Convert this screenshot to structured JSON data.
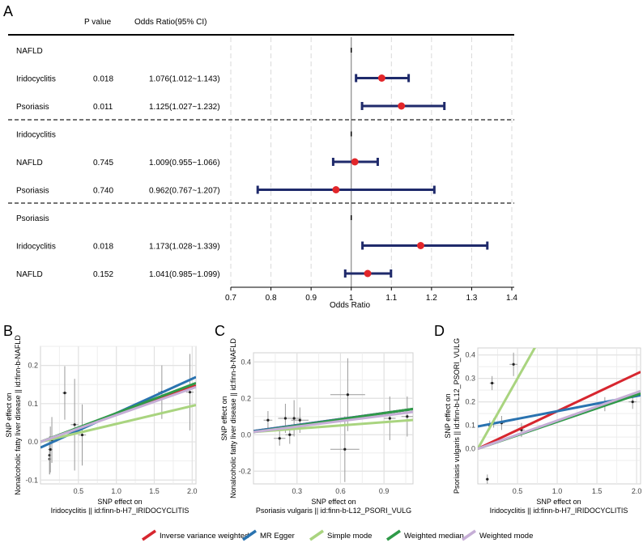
{
  "colors": {
    "ivw": "#d7262f",
    "egger": "#2a73b0",
    "simple": "#a9d47f",
    "wmedian": "#2f9a48",
    "wmode": "#c6aed6",
    "forest_line": "#1f2a6b",
    "forest_point": "#e2262a",
    "grid": "#d9d9d9"
  },
  "panels": {
    "A": {
      "label": "A"
    },
    "B": {
      "label": "B"
    },
    "C": {
      "label": "C"
    },
    "D": {
      "label": "D"
    }
  },
  "forest": {
    "header_p": "P value",
    "header_or": "Odds Ratio(95% CI)",
    "xlabel": "Odds Ratio",
    "xlim": [
      0.7,
      1.4
    ],
    "ticks": [
      "0.7",
      "0.8",
      "0.9",
      "1",
      "1.1",
      "1.2",
      "1.3",
      "1.4"
    ],
    "tick_values": [
      0.7,
      0.8,
      0.9,
      1.0,
      1.1,
      1.2,
      1.3,
      1.4
    ],
    "rows": [
      {
        "label": "NAFLD",
        "group": true,
        "p": "",
        "or_text": ""
      },
      {
        "label": "Iridocyclitis",
        "group": false,
        "p": "0.018",
        "or_text": "1.076(1.012~1.143)",
        "or": 1.076,
        "lo": 1.012,
        "hi": 1.143
      },
      {
        "label": "Psoriasis",
        "group": false,
        "p": "0.011",
        "or_text": "1.125(1.027~1.232)",
        "or": 1.125,
        "lo": 1.027,
        "hi": 1.232
      },
      {
        "label": "Iridocyclitis",
        "group": true,
        "p": "",
        "or_text": ""
      },
      {
        "label": "NAFLD",
        "group": false,
        "p": "0.745",
        "or_text": "1.009(0.955~1.066)",
        "or": 1.009,
        "lo": 0.955,
        "hi": 1.066
      },
      {
        "label": "Psoriasis",
        "group": false,
        "p": "0.740",
        "or_text": "0.962(0.767~1.207)",
        "or": 0.962,
        "lo": 0.767,
        "hi": 1.207
      },
      {
        "label": "Psoriasis",
        "group": true,
        "p": "",
        "or_text": ""
      },
      {
        "label": "Iridocyclitis",
        "group": false,
        "p": "0.018",
        "or_text": "1.173(1.028~1.339)",
        "or": 1.173,
        "lo": 1.028,
        "hi": 1.339
      },
      {
        "label": "NAFLD",
        "group": false,
        "p": "0.152",
        "or_text": "1.041(0.985~1.099)",
        "or": 1.041,
        "lo": 0.985,
        "hi": 1.099
      }
    ]
  },
  "chart_data": [
    {
      "type": "scatter",
      "panel": "B",
      "xlabel_line1": "SNP effect on",
      "xlabel_line2": "Iridocyclitis || id:finn-b-H7_IRIDOCYCLITIS",
      "ylabel_line1": "SNP effect on",
      "ylabel_line2": "Nonalcoholic fatty liver disease || id:finn-b-NAFLD",
      "xlim": [
        0,
        2.05
      ],
      "ylim": [
        -0.11,
        0.25
      ],
      "xticks": [
        0.5,
        1.0,
        1.5,
        2.0
      ],
      "xtick_labels": [
        "0.5",
        "1.0",
        "1.5",
        "2.0"
      ],
      "yticks": [
        -0.1,
        0.0,
        0.1,
        0.2
      ],
      "ytick_labels": [
        "-0.1",
        "0.0",
        "0.1",
        "0.2"
      ],
      "points": [
        {
          "x": 0.12,
          "y": -0.045,
          "xe": 0.02,
          "ye": 0.04
        },
        {
          "x": 0.12,
          "y": -0.035,
          "xe": 0.02,
          "ye": 0.05
        },
        {
          "x": 0.13,
          "y": -0.02,
          "xe": 0.03,
          "ye": 0.06
        },
        {
          "x": 0.15,
          "y": 0.005,
          "xe": 0.03,
          "ye": 0.06
        },
        {
          "x": 0.32,
          "y": 0.128,
          "xe": 0.03,
          "ye": 0.07
        },
        {
          "x": 0.45,
          "y": 0.045,
          "xe": 0.05,
          "ye": 0.12
        },
        {
          "x": 0.55,
          "y": 0.018,
          "xe": 0.05,
          "ye": 0.08
        },
        {
          "x": 1.6,
          "y": 0.13,
          "xe": 0.05,
          "ye": 0.07
        },
        {
          "x": 1.97,
          "y": 0.13,
          "xe": 0.05,
          "ye": 0.1
        }
      ],
      "lines": [
        {
          "method": "ivw",
          "slope": 0.072,
          "intercept": 0.0
        },
        {
          "method": "egger",
          "slope": 0.09,
          "intercept": -0.015
        },
        {
          "method": "simple",
          "slope": 0.047,
          "intercept": 0.0
        },
        {
          "method": "wmedian",
          "slope": 0.075,
          "intercept": 0.0
        },
        {
          "method": "wmode",
          "slope": 0.07,
          "intercept": 0.0
        }
      ]
    },
    {
      "type": "scatter",
      "panel": "C",
      "xlabel_line1": "SNP effect on",
      "xlabel_line2": "Psoriasis vulgaris || id:finn-b-L12_PSORI_VULG",
      "ylabel_line1": "SNP effect on",
      "ylabel_line2": "Nonalcoholic fatty liver disease || id:finn-b-NAFLD",
      "xlim": [
        0,
        1.1
      ],
      "ylim": [
        -0.27,
        0.45
      ],
      "xticks": [
        0.3,
        0.6,
        0.9
      ],
      "xtick_labels": [
        "0.3",
        "0.6",
        "0.9"
      ],
      "yticks": [
        -0.2,
        0.0,
        0.2,
        0.4
      ],
      "ytick_labels": [
        "-0.2",
        "0.0",
        "0.2",
        "0.4"
      ],
      "points": [
        {
          "x": 0.1,
          "y": 0.08,
          "xe": 0.03,
          "ye": 0.05
        },
        {
          "x": 0.18,
          "y": -0.02,
          "xe": 0.04,
          "ye": 0.04
        },
        {
          "x": 0.22,
          "y": 0.09,
          "xe": 0.05,
          "ye": 0.08
        },
        {
          "x": 0.25,
          "y": 0.0,
          "xe": 0.03,
          "ye": 0.05
        },
        {
          "x": 0.28,
          "y": 0.09,
          "xe": 0.05,
          "ye": 0.1
        },
        {
          "x": 0.32,
          "y": 0.08,
          "xe": 0.06,
          "ye": 0.07
        },
        {
          "x": 0.65,
          "y": 0.22,
          "xe": 0.12,
          "ye": 0.2
        },
        {
          "x": 0.63,
          "y": -0.08,
          "xe": 0.1,
          "ye": 0.18
        },
        {
          "x": 0.94,
          "y": 0.09,
          "xe": 0.04,
          "ye": 0.12
        },
        {
          "x": 1.06,
          "y": 0.1,
          "xe": 0.04,
          "ye": 0.11
        }
      ],
      "lines": [
        {
          "method": "ivw",
          "slope": 0.11,
          "intercept": 0.02
        },
        {
          "method": "egger",
          "slope": 0.11,
          "intercept": 0.02
        },
        {
          "method": "simple",
          "slope": 0.06,
          "intercept": 0.015
        },
        {
          "method": "wmedian",
          "slope": 0.115,
          "intercept": 0.015
        },
        {
          "method": "wmode",
          "slope": 0.1,
          "intercept": 0.015
        }
      ]
    },
    {
      "type": "scatter",
      "panel": "D",
      "xlabel_line1": "SNP effect on",
      "xlabel_line2": "Iridocyclitis || id:finn-b-H7_IRIDOCYCLITIS",
      "ylabel_line1": "SNP effect on",
      "ylabel_line2": "Psoriasis vulgaris || id:finn-b-L12_PSORI_VULG",
      "xlim": [
        0,
        2.05
      ],
      "ylim": [
        -0.15,
        0.43
      ],
      "xticks": [
        0.5,
        1.0,
        1.5,
        2.0
      ],
      "xtick_labels": [
        "0.5",
        "1.0",
        "1.5",
        "2.0"
      ],
      "yticks": [
        0.0,
        0.1,
        0.2,
        0.3,
        0.4
      ],
      "ytick_labels": [
        "0.0",
        "0.1",
        "0.2",
        "0.3",
        "0.4"
      ],
      "points": [
        {
          "x": 0.12,
          "y": -0.13,
          "xe": 0.02,
          "ye": 0.02
        },
        {
          "x": 0.15,
          "y": 0.1,
          "xe": 0.02,
          "ye": 0.02
        },
        {
          "x": 0.18,
          "y": 0.28,
          "xe": 0.03,
          "ye": 0.03
        },
        {
          "x": 0.2,
          "y": 0.11,
          "xe": 0.03,
          "ye": 0.02
        },
        {
          "x": 0.3,
          "y": 0.11,
          "xe": 0.04,
          "ye": 0.03
        },
        {
          "x": 0.45,
          "y": 0.36,
          "xe": 0.05,
          "ye": 0.05
        },
        {
          "x": 0.55,
          "y": 0.08,
          "xe": 0.04,
          "ye": 0.03
        },
        {
          "x": 1.6,
          "y": 0.19,
          "xe": 0.05,
          "ye": 0.03
        },
        {
          "x": 1.95,
          "y": 0.2,
          "xe": 0.05,
          "ye": 0.03
        }
      ],
      "lines": [
        {
          "method": "ivw",
          "slope": 0.16,
          "intercept": 0.0
        },
        {
          "method": "egger",
          "slope": 0.065,
          "intercept": 0.095
        },
        {
          "method": "simple",
          "slope": 0.6,
          "intercept": 0.0
        },
        {
          "method": "wmedian",
          "slope": 0.115,
          "intercept": 0.0
        },
        {
          "method": "wmode",
          "slope": 0.12,
          "intercept": 0.0
        }
      ]
    }
  ],
  "legend": [
    {
      "method": "ivw",
      "label": "Inverse variance weighted"
    },
    {
      "method": "egger",
      "label": "MR Egger"
    },
    {
      "method": "simple",
      "label": "Simple mode"
    },
    {
      "method": "wmedian",
      "label": "Weighted median"
    },
    {
      "method": "wmode",
      "label": "Weighted mode"
    }
  ]
}
